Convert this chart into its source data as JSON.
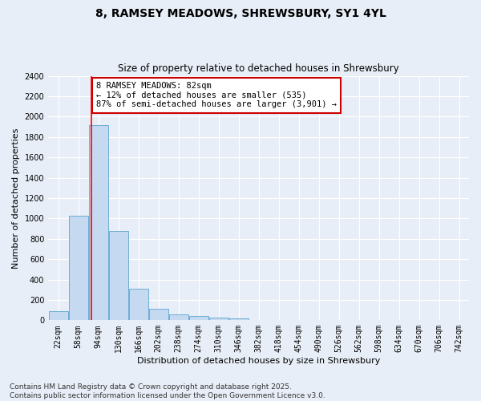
{
  "title_line1": "8, RAMSEY MEADOWS, SHREWSBURY, SY1 4YL",
  "title_line2": "Size of property relative to detached houses in Shrewsbury",
  "xlabel": "Distribution of detached houses by size in Shrewsbury",
  "ylabel": "Number of detached properties",
  "annotation_line1": "8 RAMSEY MEADOWS: 82sqm",
  "annotation_line2": "← 12% of detached houses are smaller (535)",
  "annotation_line3": "87% of semi-detached houses are larger (3,901) →",
  "bar_color": "#c5d9f0",
  "bar_edge_color": "#6baed6",
  "property_line_x": 82,
  "categories": [
    "22sqm",
    "58sqm",
    "94sqm",
    "130sqm",
    "166sqm",
    "202sqm",
    "238sqm",
    "274sqm",
    "310sqm",
    "346sqm",
    "382sqm",
    "418sqm",
    "454sqm",
    "490sqm",
    "526sqm",
    "562sqm",
    "598sqm",
    "634sqm",
    "670sqm",
    "706sqm",
    "742sqm"
  ],
  "bin_starts": [
    22,
    58,
    94,
    130,
    166,
    202,
    238,
    274,
    310,
    346,
    382,
    418,
    454,
    490,
    526,
    562,
    598,
    634,
    670,
    706,
    742
  ],
  "values": [
    90,
    1030,
    1920,
    880,
    310,
    115,
    55,
    45,
    28,
    15,
    0,
    0,
    0,
    0,
    0,
    0,
    0,
    0,
    0,
    0,
    0
  ],
  "ylim": [
    0,
    2400
  ],
  "yticks": [
    0,
    200,
    400,
    600,
    800,
    1000,
    1200,
    1400,
    1600,
    1800,
    2000,
    2200,
    2400
  ],
  "background_color": "#e8eef7",
  "plot_bg_color": "#e8eef7",
  "grid_color": "#ffffff",
  "annotation_box_color": "#cc0000",
  "footer_line1": "Contains HM Land Registry data © Crown copyright and database right 2025.",
  "footer_line2": "Contains public sector information licensed under the Open Government Licence v3.0.",
  "title_fontsize": 10,
  "subtitle_fontsize": 8.5,
  "axis_label_fontsize": 8,
  "tick_fontsize": 7,
  "annotation_fontsize": 7.5,
  "footer_fontsize": 6.5
}
